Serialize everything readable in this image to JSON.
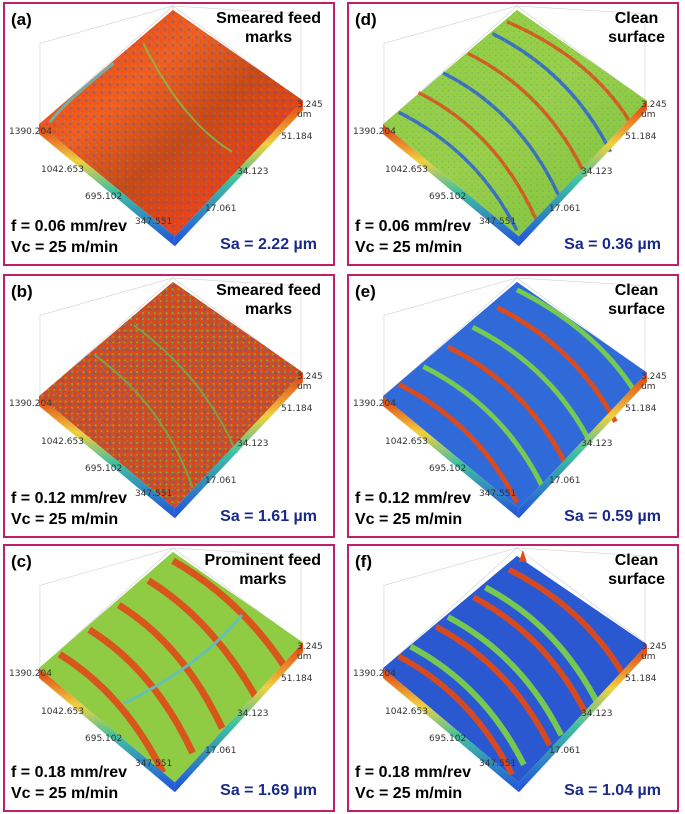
{
  "axis_ticks": {
    "left": [
      "1390.204",
      "1042.653",
      "695.102",
      "347.551"
    ],
    "right": [
      "3.245 um",
      "51.184",
      "34.123",
      "17.061"
    ]
  },
  "colors": {
    "border": "#c0206a",
    "sa_text": "#1a2a8a",
    "peak": "#e03a10",
    "mid": "#7ccf4a",
    "valley": "#1f4fd6"
  },
  "panels": {
    "a": {
      "letter": "(a)",
      "note_line1": "Smeared feed",
      "note_line2": "marks",
      "feed": "f = 0.06 mm/rev",
      "speed": "Vc = 25 m/min",
      "sa": "Sa = 2.22 µm"
    },
    "b": {
      "letter": "(b)",
      "note_line1": "Smeared feed",
      "note_line2": "marks",
      "feed": "f = 0.12 mm/rev",
      "speed": "Vc = 25 m/min",
      "sa": "Sa = 1.61 µm"
    },
    "c": {
      "letter": "(c)",
      "note_line1": "Prominent feed",
      "note_line2": "marks",
      "feed": "f = 0.18 mm/rev",
      "speed": "Vc = 25 m/min",
      "sa": "Sa = 1.69 µm"
    },
    "d": {
      "letter": "(d)",
      "note_line1": "Clean",
      "note_line2": "surface",
      "feed": "f = 0.06 mm/rev",
      "speed": "Vc = 25 m/min",
      "sa": "Sa = 0.36 µm"
    },
    "e": {
      "letter": "(e)",
      "note_line1": "Clean",
      "note_line2": "surface",
      "feed": "f = 0.12 mm/rev",
      "speed": "Vc = 25 m/min",
      "sa": "Sa = 0.59 µm"
    },
    "f": {
      "letter": "(f)",
      "note_line1": "Clean",
      "note_line2": "surface",
      "feed": "f = 0.18 mm/rev",
      "speed": "Vc = 25 m/min",
      "sa": "Sa = 1.04 µm"
    }
  }
}
